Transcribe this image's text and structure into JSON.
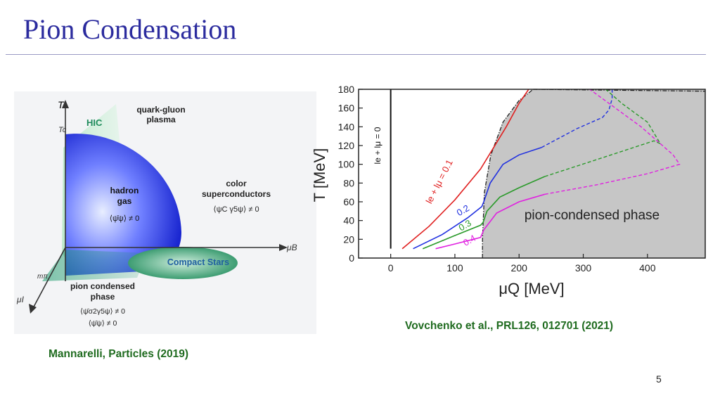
{
  "slide": {
    "title": "Pion Condensation",
    "page_number": "5"
  },
  "left_figure": {
    "axis_T": "T",
    "axis_Tc": "Tc",
    "axis_muB": "μB",
    "axis_muI": "μI",
    "axis_mpi": "mπ",
    "hic": "HIC",
    "qgp_line1": "quark-gluon",
    "qgp_line2": "plasma",
    "hadron_line1": "hadron",
    "hadron_line2": "gas",
    "hadron_condensate": "⟨ψ̄ψ⟩ ≠ 0",
    "csc_line1": "color",
    "csc_line2": "superconductors",
    "csc_condensate": "⟨ψC γ5ψ⟩ ≠ 0",
    "compact_stars": "Compact Stars",
    "pion_line1": "pion condensed",
    "pion_line2": "phase",
    "pion_condensate1": "⟨ψ̄σ2γ5ψ⟩ ≠ 0",
    "pion_condensate2": "⟨ψ̄ψ⟩ ≠ 0",
    "caption": "Mannarelli, Particles (2019)"
  },
  "chart_data": {
    "type": "line",
    "xlabel": "μQ [MeV]",
    "ylabel": "T [MeV]",
    "xlim": [
      -50,
      490
    ],
    "ylim": [
      0,
      180
    ],
    "xticks": [
      0,
      100,
      200,
      300,
      400
    ],
    "yticks": [
      0,
      20,
      40,
      60,
      80,
      100,
      120,
      140,
      160,
      180
    ],
    "region_label": "pion-condensed phase",
    "vertical_line": {
      "x": 0,
      "label": "le + lμ = 0"
    },
    "series": [
      {
        "name": "0.1",
        "color": "#e02020",
        "solid": [
          [
            18,
            10
          ],
          [
            60,
            34
          ],
          [
            100,
            62
          ],
          [
            140,
            95
          ],
          [
            180,
            140
          ],
          [
            200,
            165
          ],
          [
            215,
            180
          ]
        ],
        "dashed": []
      },
      {
        "name": "0.2",
        "color": "#2030e0",
        "solid": [
          [
            35,
            10
          ],
          [
            80,
            25
          ],
          [
            120,
            43
          ],
          [
            142,
            55
          ],
          [
            145,
            60
          ],
          [
            155,
            80
          ],
          [
            175,
            100
          ],
          [
            200,
            110
          ],
          [
            235,
            118
          ]
        ],
        "dashed": [
          [
            235,
            118
          ],
          [
            290,
            138
          ],
          [
            330,
            150
          ],
          [
            340,
            158
          ],
          [
            345,
            170
          ],
          [
            345,
            180
          ]
        ]
      },
      {
        "name": "0.3",
        "color": "#2a9a2a",
        "solid": [
          [
            50,
            10
          ],
          [
            100,
            24
          ],
          [
            140,
            35
          ],
          [
            144,
            38
          ],
          [
            150,
            50
          ],
          [
            170,
            65
          ],
          [
            200,
            75
          ],
          [
            240,
            87
          ]
        ],
        "dashed": [
          [
            240,
            87
          ],
          [
            330,
            107
          ],
          [
            410,
            125
          ],
          [
            420,
            122
          ],
          [
            400,
            145
          ],
          [
            360,
            165
          ],
          [
            335,
            180
          ]
        ]
      },
      {
        "name": "0.4",
        "color": "#e020e0",
        "solid": [
          [
            70,
            10
          ],
          [
            100,
            15
          ],
          [
            140,
            22
          ],
          [
            145,
            30
          ],
          [
            165,
            48
          ],
          [
            200,
            60
          ],
          [
            240,
            68
          ]
        ],
        "dashed": [
          [
            240,
            68
          ],
          [
            320,
            78
          ],
          [
            400,
            90
          ],
          [
            450,
            100
          ],
          [
            440,
            110
          ],
          [
            390,
            140
          ],
          [
            330,
            170
          ],
          [
            310,
            180
          ]
        ]
      }
    ],
    "labels": [
      {
        "text": "le + lμ = 0.1",
        "x": 80,
        "y": 80
      },
      {
        "text": "0.2",
        "x": 115,
        "y": 48
      },
      {
        "text": "0.3",
        "x": 118,
        "y": 32
      },
      {
        "text": "0.4",
        "x": 125,
        "y": 16
      }
    ],
    "caption": "Vovchenko et al., PRL126, 012701 (2021)"
  }
}
